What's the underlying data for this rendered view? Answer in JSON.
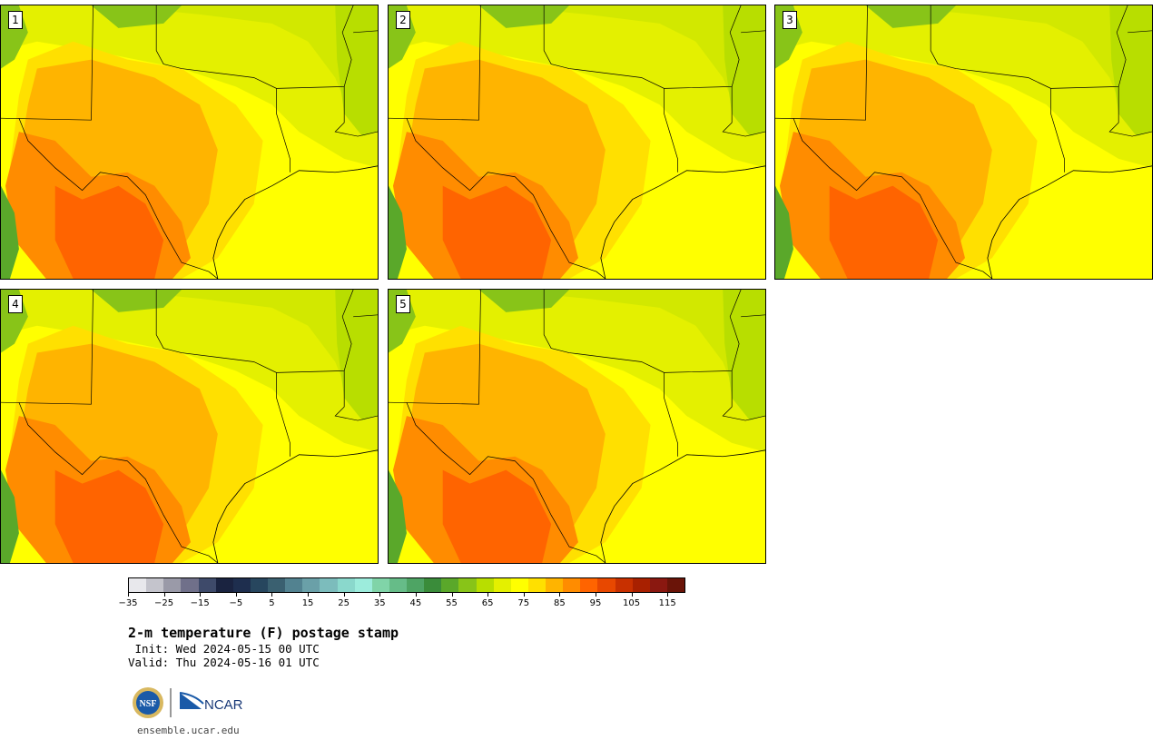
{
  "panels": [
    {
      "label": "1"
    },
    {
      "label": "2"
    },
    {
      "label": "3"
    },
    {
      "label": "4"
    },
    {
      "label": "5"
    }
  ],
  "colorbar": {
    "colors": [
      "#e8e8ec",
      "#c4c4cc",
      "#9a9aa8",
      "#70708a",
      "#3e4a6a",
      "#1a2340",
      "#1e2e4e",
      "#27465e",
      "#3a6070",
      "#528290",
      "#6aa0a8",
      "#7cbcbc",
      "#8ad8cc",
      "#9cecdc",
      "#80d4a8",
      "#66bc88",
      "#4ea464",
      "#3a8c3a",
      "#5aa82a",
      "#88c418",
      "#b8de00",
      "#e4f000",
      "#ffff00",
      "#ffe000",
      "#ffb400",
      "#ff8c00",
      "#ff6400",
      "#e84800",
      "#c83000",
      "#a82000",
      "#8a1810",
      "#6a1408"
    ],
    "ticks": [
      "−35",
      "−25",
      "−15",
      "−5",
      "5",
      "15",
      "25",
      "35",
      "45",
      "55",
      "65",
      "75",
      "85",
      "95",
      "105",
      "115"
    ]
  },
  "title": "2-m temperature (F) postage stamp",
  "init": " Init: Wed 2024-05-15 00 UTC",
  "valid": "Valid: Thu 2024-05-16 01 UTC",
  "logos": {
    "nsf": "NSF",
    "ncar": "NCAR"
  },
  "footer_url": "ensemble.ucar.edu"
}
